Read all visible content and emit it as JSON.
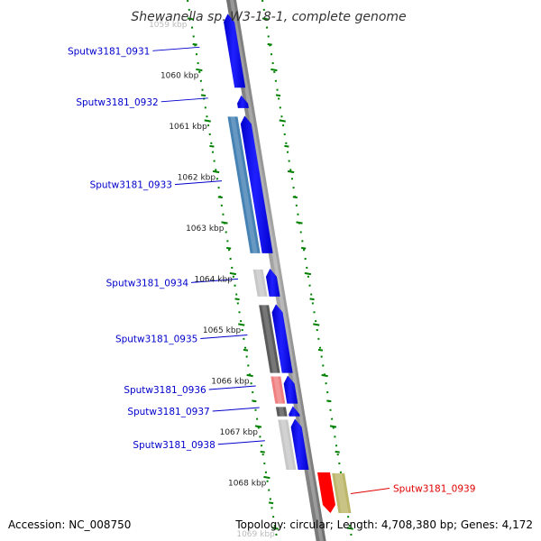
{
  "title": "Shewanella sp. W3-18-1, complete genome",
  "footer": {
    "accession": "Accession: NC_008750",
    "summary": "Topology: circular; Length: 4,708,380 bp; Genes: 4,172"
  },
  "ruler": {
    "faint_top": "1059 kbp",
    "faint_bottom": "1069 kbp",
    "ticks": [
      "1060 kbp",
      "1061 kbp",
      "1062 kbp",
      "1063 kbp",
      "1064 kbp",
      "1065 kbp",
      "1066 kbp",
      "1067 kbp",
      "1068 kbp"
    ]
  },
  "genes": [
    {
      "id": "0931",
      "label": "Sputw3181_0931",
      "strand": "reverse",
      "start_kbp": 1058.9,
      "end_kbp": 1060.35,
      "cog_color": null,
      "highlight": false
    },
    {
      "id": "0932",
      "label": "Sputw3181_0932",
      "strand": "reverse",
      "start_kbp": 1060.5,
      "end_kbp": 1060.75,
      "cog_color": null,
      "highlight": false
    },
    {
      "id": "0933",
      "label": "Sputw3181_0933",
      "strand": "reverse",
      "start_kbp": 1060.9,
      "end_kbp": 1063.6,
      "cog_color": "#4682b4",
      "highlight": false
    },
    {
      "id": "0934",
      "label": "Sputw3181_0934",
      "strand": "reverse",
      "start_kbp": 1063.9,
      "end_kbp": 1064.45,
      "cog_color": "#c8c8c8",
      "highlight": false
    },
    {
      "id": "0935",
      "label": "Sputw3181_0935",
      "strand": "reverse",
      "start_kbp": 1064.6,
      "end_kbp": 1065.95,
      "cog_color": "#5a5a5a",
      "highlight": false
    },
    {
      "id": "0936",
      "label": "Sputw3181_0936",
      "strand": "reverse",
      "start_kbp": 1066.0,
      "end_kbp": 1066.55,
      "cog_color": "#f08080",
      "highlight": false
    },
    {
      "id": "0937",
      "label": "Sputw3181_0937",
      "strand": "reverse",
      "start_kbp": 1066.6,
      "end_kbp": 1066.8,
      "cog_color": "#5a5a5a",
      "highlight": false
    },
    {
      "id": "0938",
      "label": "Sputw3181_0938",
      "strand": "reverse",
      "start_kbp": 1066.85,
      "end_kbp": 1067.85,
      "cog_color": "#c8c8c8",
      "highlight": false
    },
    {
      "id": "0939",
      "label": "Sputw3181_0939",
      "strand": "forward",
      "start_kbp": 1067.9,
      "end_kbp": 1068.7,
      "cog_color": "#bdb76b",
      "highlight": true
    }
  ],
  "colors": {
    "cds": "#0000ff",
    "backbone": "#808080",
    "ruler": "#008000",
    "label": "#0000cc",
    "highlight_label": "#e00000",
    "highlight_cds": "#ff0000"
  }
}
